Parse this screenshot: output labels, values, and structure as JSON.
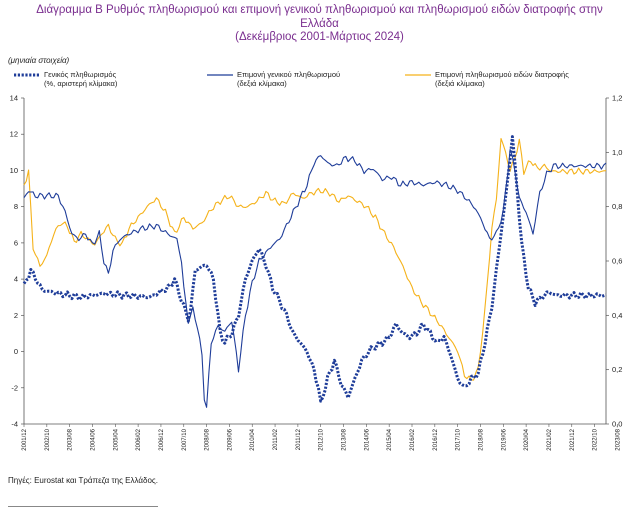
{
  "title": {
    "line1": "Διάγραμμα Β Ρυθμός πληθωρισμού και επιμονή γενικού πληθωρισμού και πληθωρισμού ειδών διατροφής στην",
    "line2": "Ελλάδα",
    "line3": "(Δεκέμβριος 2001-Μάρτιος 2024)"
  },
  "subnote": "(μηνιαία στοιχεία)",
  "source": "Πηγές: Eurostat και Τράπεζα της Ελλάδος.",
  "colors": {
    "inflation": "#1f3d99",
    "persistence_general": "#1f3d99",
    "persistence_food": "#f5b21a",
    "title": "#7a2e8f"
  },
  "chart_data": {
    "type": "line",
    "x_tick_labels": [
      "2001/12",
      "2002/10",
      "2003/08",
      "2004/06",
      "2005/04",
      "2006/02",
      "2006/12",
      "2007/10",
      "2008/08",
      "2009/06",
      "2010/04",
      "2011/02",
      "2011/12",
      "2012/10",
      "2013/08",
      "2014/06",
      "2015/04",
      "2016/02",
      "2016/12",
      "2017/10",
      "2018/08",
      "2019/06",
      "2020/04",
      "2021/02",
      "2021/12",
      "2022/10",
      "2023/08"
    ],
    "left_axis": {
      "min": -4,
      "max": 14,
      "ticks": [
        "-4",
        "-2",
        "0",
        "2",
        "4",
        "6",
        "8",
        "10",
        "12",
        "14"
      ]
    },
    "right_axis": {
      "min": 0.0,
      "max": 1.2,
      "ticks": [
        "0,0",
        "0,2",
        "0,4",
        "0,6",
        "0,8",
        "1,0",
        "1,2"
      ]
    },
    "series": [
      {
        "name": "Γενικός πληθωρισμός",
        "legend_line2": "(%, αριστερή κλίμακα)",
        "axis": "left",
        "style": "dotted",
        "anchors": [
          [
            0,
            3.6
          ],
          [
            3,
            4.5
          ],
          [
            8,
            3.4
          ],
          [
            15,
            3.2
          ],
          [
            25,
            3.0
          ],
          [
            35,
            3.2
          ],
          [
            45,
            3.1
          ],
          [
            55,
            3.0
          ],
          [
            63,
            3.5
          ],
          [
            66,
            4.0
          ],
          [
            68,
            3.2
          ],
          [
            70,
            2.5
          ],
          [
            72,
            1.8
          ],
          [
            73,
            2.3
          ],
          [
            75,
            4.5
          ],
          [
            80,
            4.8
          ],
          [
            83,
            4.0
          ],
          [
            86,
            1.0
          ],
          [
            88,
            0.5
          ],
          [
            91,
            1.0
          ],
          [
            94,
            2.0
          ],
          [
            97,
            4.0
          ],
          [
            100,
            5.0
          ],
          [
            103,
            5.7
          ],
          [
            106,
            4.8
          ],
          [
            109,
            3.5
          ],
          [
            112,
            2.8
          ],
          [
            115,
            2.0
          ],
          [
            118,
            1.0
          ],
          [
            121,
            0.5
          ],
          [
            124,
            0.0
          ],
          [
            127,
            -1.0
          ],
          [
            129,
            -2.0
          ],
          [
            130,
            -2.9
          ],
          [
            133,
            -1.5
          ],
          [
            136,
            -0.5
          ],
          [
            139,
            -1.8
          ],
          [
            142,
            -2.5
          ],
          [
            145,
            -1.5
          ],
          [
            148,
            -0.5
          ],
          [
            151,
            0.0
          ],
          [
            154,
            0.3
          ],
          [
            157,
            0.5
          ],
          [
            160,
            0.8
          ],
          [
            163,
            1.5
          ],
          [
            166,
            1.0
          ],
          [
            169,
            0.8
          ],
          [
            172,
            1.0
          ],
          [
            175,
            1.5
          ],
          [
            178,
            1.0
          ],
          [
            181,
            0.5
          ],
          [
            184,
            0.8
          ],
          [
            187,
            -0.2
          ],
          [
            190,
            -1.5
          ],
          [
            193,
            -2.0
          ],
          [
            196,
            -1.5
          ],
          [
            199,
            -1.2
          ],
          [
            202,
            0.5
          ],
          [
            205,
            2.5
          ],
          [
            208,
            5.5
          ],
          [
            211,
            8.5
          ],
          [
            213,
            10.7
          ],
          [
            214,
            11.9
          ],
          [
            216,
            9.0
          ],
          [
            218,
            6.0
          ],
          [
            221,
            3.5
          ],
          [
            224,
            2.7
          ],
          [
            227,
            3.0
          ],
          [
            230,
            3.3
          ],
          [
            233,
            3.1
          ],
          [
            255,
            3.1
          ]
        ]
      },
      {
        "name": "Επιμονή γενικού πληθωρισμού",
        "legend_line2": "(δεξιά κλίμακα)",
        "axis": "right",
        "style": "solid",
        "anchors": [
          [
            0,
            0.83
          ],
          [
            2,
            0.86
          ],
          [
            5,
            0.84
          ],
          [
            15,
            0.84
          ],
          [
            18,
            0.78
          ],
          [
            21,
            0.7
          ],
          [
            24,
            0.68
          ],
          [
            27,
            0.7
          ],
          [
            30,
            0.66
          ],
          [
            33,
            0.7
          ],
          [
            35,
            0.6
          ],
          [
            37,
            0.55
          ],
          [
            39,
            0.64
          ],
          [
            42,
            0.68
          ],
          [
            46,
            0.7
          ],
          [
            52,
            0.72
          ],
          [
            58,
            0.73
          ],
          [
            63,
            0.7
          ],
          [
            67,
            0.68
          ],
          [
            69,
            0.6
          ],
          [
            70,
            0.5
          ],
          [
            72,
            0.38
          ],
          [
            74,
            0.42
          ],
          [
            76,
            0.36
          ],
          [
            78,
            0.25
          ],
          [
            79,
            0.1
          ],
          [
            80,
            0.06
          ],
          [
            82,
            0.3
          ],
          [
            85,
            0.36
          ],
          [
            88,
            0.34
          ],
          [
            91,
            0.38
          ],
          [
            94,
            0.2
          ],
          [
            97,
            0.4
          ],
          [
            100,
            0.52
          ],
          [
            103,
            0.6
          ],
          [
            106,
            0.63
          ],
          [
            109,
            0.66
          ],
          [
            112,
            0.68
          ],
          [
            115,
            0.73
          ],
          [
            118,
            0.78
          ],
          [
            121,
            0.83
          ],
          [
            124,
            0.88
          ],
          [
            127,
            0.96
          ],
          [
            130,
            0.99
          ],
          [
            133,
            0.96
          ],
          [
            137,
            0.95
          ],
          [
            141,
            0.98
          ],
          [
            145,
            0.97
          ],
          [
            149,
            0.93
          ],
          [
            153,
            0.94
          ],
          [
            157,
            0.9
          ],
          [
            161,
            0.91
          ],
          [
            165,
            0.88
          ],
          [
            170,
            0.89
          ],
          [
            175,
            0.88
          ],
          [
            180,
            0.89
          ],
          [
            185,
            0.88
          ],
          [
            190,
            0.86
          ],
          [
            195,
            0.82
          ],
          [
            198,
            0.79
          ],
          [
            201,
            0.74
          ],
          [
            204,
            0.68
          ],
          [
            207,
            0.7
          ],
          [
            210,
            0.78
          ],
          [
            213,
            1.01
          ],
          [
            215,
            0.94
          ],
          [
            217,
            0.83
          ],
          [
            220,
            0.78
          ],
          [
            223,
            0.7
          ],
          [
            226,
            0.85
          ],
          [
            229,
            0.92
          ],
          [
            232,
            0.95
          ],
          [
            255,
            0.95
          ]
        ]
      },
      {
        "name": "Επιμονή πληθωρισμού ειδών διατροφής",
        "legend_line2": "(δεξιά κλίμακα)",
        "axis": "right",
        "style": "solid",
        "anchors": [
          [
            0,
            0.88
          ],
          [
            2,
            0.93
          ],
          [
            4,
            0.65
          ],
          [
            7,
            0.58
          ],
          [
            10,
            0.62
          ],
          [
            13,
            0.7
          ],
          [
            16,
            0.74
          ],
          [
            19,
            0.73
          ],
          [
            22,
            0.67
          ],
          [
            25,
            0.7
          ],
          [
            28,
            0.68
          ],
          [
            31,
            0.66
          ],
          [
            34,
            0.7
          ],
          [
            37,
            0.73
          ],
          [
            40,
            0.68
          ],
          [
            43,
            0.66
          ],
          [
            46,
            0.72
          ],
          [
            50,
            0.76
          ],
          [
            54,
            0.8
          ],
          [
            58,
            0.83
          ],
          [
            62,
            0.78
          ],
          [
            66,
            0.7
          ],
          [
            70,
            0.76
          ],
          [
            74,
            0.72
          ],
          [
            78,
            0.74
          ],
          [
            82,
            0.79
          ],
          [
            86,
            0.82
          ],
          [
            90,
            0.84
          ],
          [
            94,
            0.8
          ],
          [
            98,
            0.8
          ],
          [
            102,
            0.82
          ],
          [
            106,
            0.85
          ],
          [
            110,
            0.82
          ],
          [
            114,
            0.81
          ],
          [
            118,
            0.85
          ],
          [
            122,
            0.83
          ],
          [
            126,
            0.85
          ],
          [
            130,
            0.86
          ],
          [
            134,
            0.85
          ],
          [
            138,
            0.82
          ],
          [
            142,
            0.84
          ],
          [
            146,
            0.82
          ],
          [
            150,
            0.8
          ],
          [
            154,
            0.76
          ],
          [
            158,
            0.7
          ],
          [
            162,
            0.65
          ],
          [
            166,
            0.58
          ],
          [
            170,
            0.5
          ],
          [
            174,
            0.45
          ],
          [
            178,
            0.41
          ],
          [
            182,
            0.37
          ],
          [
            186,
            0.32
          ],
          [
            190,
            0.27
          ],
          [
            193,
            0.18
          ],
          [
            196,
            0.16
          ],
          [
            199,
            0.2
          ],
          [
            202,
            0.42
          ],
          [
            205,
            0.72
          ],
          [
            207,
            0.83
          ],
          [
            209,
            1.05
          ],
          [
            211,
            1.0
          ],
          [
            213,
            0.93
          ],
          [
            215,
            0.98
          ],
          [
            217,
            1.04
          ],
          [
            219,
            0.93
          ],
          [
            222,
            0.97
          ],
          [
            225,
            0.94
          ],
          [
            228,
            0.95
          ],
          [
            231,
            0.93
          ],
          [
            255,
            0.93
          ]
        ]
      }
    ]
  }
}
